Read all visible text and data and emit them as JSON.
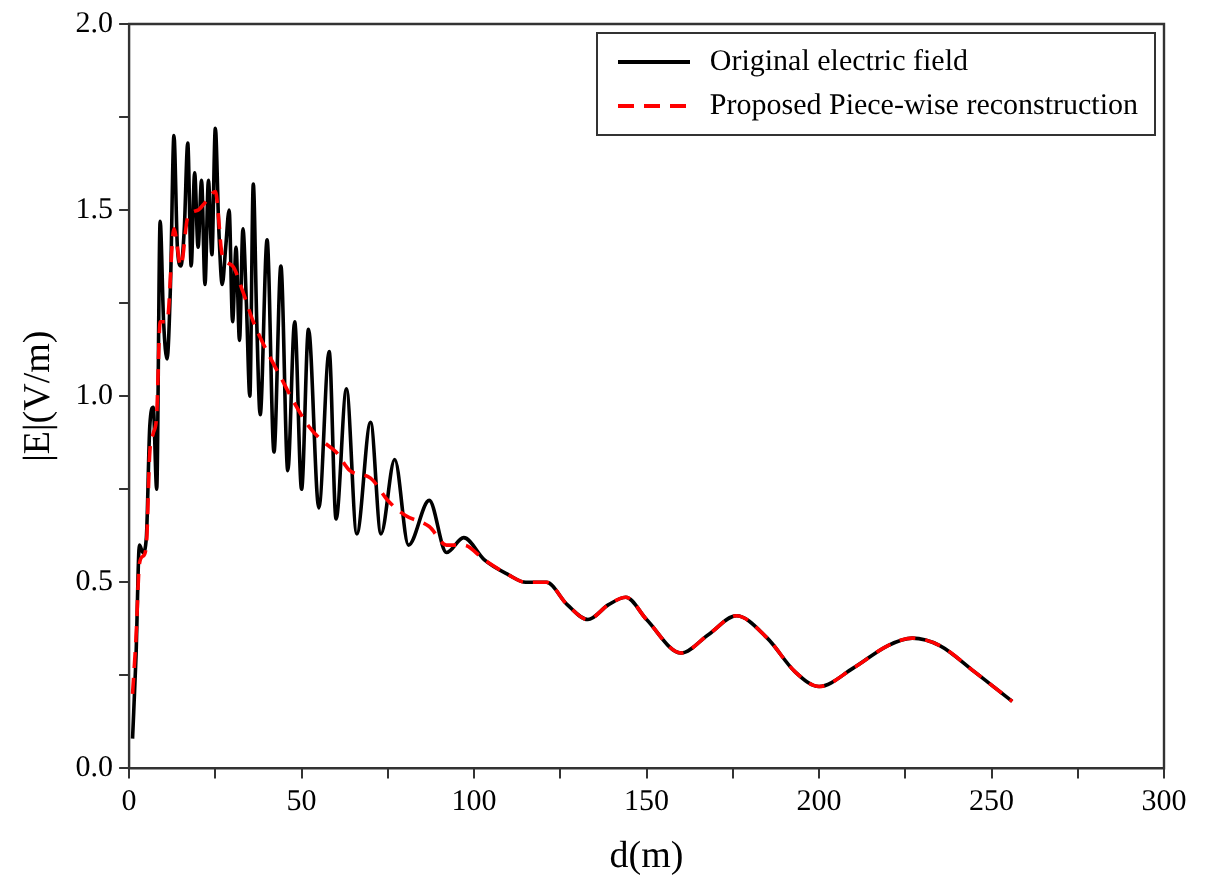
{
  "chart_data": {
    "type": "line",
    "xlabel": "d(m)",
    "ylabel": "|E|(V/m)",
    "xlim": [
      0,
      300
    ],
    "ylim": [
      0,
      2
    ],
    "xticks": [
      0,
      {
        "value": 25,
        "label": null
      },
      50,
      {
        "value": 75,
        "label": null
      },
      100,
      {
        "value": 125,
        "label": null
      },
      150,
      {
        "value": 175,
        "label": null
      },
      200,
      {
        "value": 225,
        "label": null
      },
      250,
      {
        "value": 275,
        "label": null
      },
      300
    ],
    "yticks": [
      {
        "value": 0,
        "label": "0.0"
      },
      {
        "value": 0.25,
        "label": null
      },
      {
        "value": 0.5,
        "label": "0.5"
      },
      {
        "value": 0.75,
        "label": null
      },
      {
        "value": 1,
        "label": "1.0"
      },
      {
        "value": 1.25,
        "label": null
      },
      {
        "value": 1.5,
        "label": "1.5"
      },
      {
        "value": 1.75,
        "label": null
      },
      {
        "value": 2,
        "label": "2.0"
      }
    ],
    "grid": false,
    "legend": "top right",
    "marker": "none",
    "series": [
      {
        "name": "Original electric field",
        "color": "#000000",
        "line_style": "solid",
        "x": [
          1,
          2,
          3,
          4,
          5,
          6,
          7,
          8,
          9,
          10,
          11,
          12,
          13,
          14,
          15,
          16,
          17,
          18,
          19,
          20,
          21,
          22,
          23,
          24,
          25,
          26,
          27,
          28,
          29,
          30,
          31,
          32,
          33,
          34,
          35,
          36,
          37,
          38,
          40,
          42,
          44,
          46,
          48,
          50,
          52,
          55,
          58,
          60,
          63,
          66,
          70,
          73,
          77,
          81,
          87,
          92,
          97,
          103,
          110,
          115,
          121,
          127,
          133,
          139,
          144,
          150,
          160,
          168,
          176,
          185,
          193,
          200,
          210,
          220,
          227,
          235,
          245,
          256
        ],
        "values": [
          0.08,
          0.3,
          0.6,
          0.58,
          0.62,
          0.92,
          0.97,
          0.75,
          1.47,
          1.2,
          1.1,
          1.3,
          1.7,
          1.4,
          1.35,
          1.45,
          1.68,
          1.35,
          1.6,
          1.4,
          1.58,
          1.3,
          1.58,
          1.38,
          1.72,
          1.45,
          1.3,
          1.4,
          1.5,
          1.2,
          1.4,
          1.15,
          1.45,
          1.25,
          1.0,
          1.57,
          1.2,
          0.95,
          1.42,
          0.85,
          1.35,
          0.8,
          1.2,
          0.75,
          1.18,
          0.7,
          1.12,
          0.67,
          1.02,
          0.63,
          0.93,
          0.63,
          0.83,
          0.6,
          0.72,
          0.58,
          0.62,
          0.56,
          0.52,
          0.5,
          0.5,
          0.44,
          0.4,
          0.44,
          0.46,
          0.4,
          0.31,
          0.36,
          0.41,
          0.35,
          0.26,
          0.22,
          0.27,
          0.33,
          0.35,
          0.33,
          0.26,
          0.18
        ]
      },
      {
        "name": "Proposed Piece-wise reconstruction",
        "color": "#ff0000",
        "line_style": "dashed",
        "x": [
          1,
          2,
          3,
          4,
          5,
          6,
          7,
          8,
          9,
          11,
          13,
          15,
          17,
          20,
          22,
          25,
          27,
          30,
          33,
          36,
          40,
          44,
          48,
          52,
          56,
          60,
          64,
          70,
          75,
          80,
          87,
          92,
          97,
          103,
          110,
          115,
          121,
          127,
          133,
          139,
          144,
          150,
          160,
          168,
          176,
          185,
          193,
          200,
          210,
          220,
          227,
          235,
          245,
          256
        ],
        "values": [
          0.2,
          0.35,
          0.55,
          0.57,
          0.6,
          0.85,
          0.9,
          0.95,
          1.2,
          1.2,
          1.45,
          1.35,
          1.48,
          1.5,
          1.52,
          1.55,
          1.38,
          1.35,
          1.28,
          1.2,
          1.12,
          1.05,
          0.98,
          0.92,
          0.88,
          0.85,
          0.8,
          0.78,
          0.72,
          0.68,
          0.65,
          0.6,
          0.6,
          0.56,
          0.52,
          0.5,
          0.5,
          0.44,
          0.4,
          0.44,
          0.46,
          0.4,
          0.31,
          0.36,
          0.41,
          0.35,
          0.26,
          0.22,
          0.27,
          0.33,
          0.35,
          0.33,
          0.26,
          0.18
        ]
      }
    ]
  }
}
